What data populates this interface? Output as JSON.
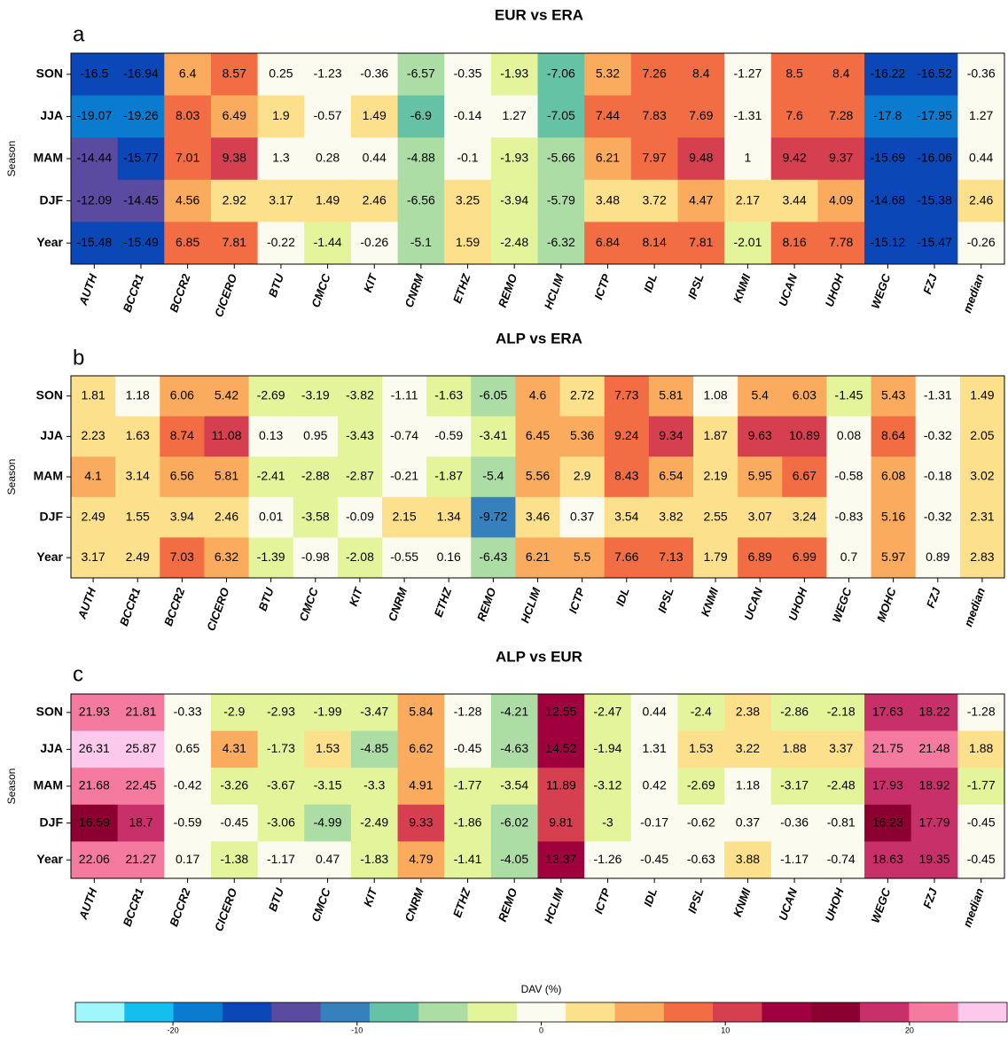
{
  "chart_data": [
    {
      "type": "heatmap",
      "title": "EUR vs ERA",
      "panel": "a",
      "ylabel": "Season",
      "rows": [
        "SON",
        "JJA",
        "MAM",
        "DJF",
        "Year"
      ],
      "columns": [
        "AUTH",
        "BCCR1",
        "BCCR2",
        "CICERO",
        "BTU",
        "CMCC",
        "KIT",
        "CNRM",
        "ETHZ",
        "REMO",
        "HCLIM",
        "ICTP",
        "IDL",
        "IPSL",
        "KNMI",
        "UCAN",
        "UHOH",
        "WEGC",
        "FZJ",
        "median"
      ],
      "values": [
        [
          -16.5,
          -16.94,
          6.4,
          8.57,
          0.25,
          -1.23,
          -0.36,
          -6.57,
          -0.35,
          -1.93,
          -7.06,
          5.32,
          7.26,
          8.4,
          -1.27,
          8.5,
          8.4,
          -16.22,
          -16.52,
          -0.36
        ],
        [
          -19.07,
          -19.26,
          8.03,
          6.49,
          1.9,
          -0.57,
          1.49,
          -6.9,
          -0.14,
          1.27,
          -7.05,
          7.44,
          7.83,
          7.69,
          -1.31,
          7.6,
          7.28,
          -17.8,
          -17.95,
          1.27
        ],
        [
          -14.44,
          -15.77,
          7.01,
          9.38,
          1.3,
          0.28,
          0.44,
          -4.88,
          -0.1,
          -1.93,
          -5.66,
          6.21,
          7.97,
          9.48,
          1,
          9.42,
          9.37,
          -15.69,
          -16.06,
          0.44
        ],
        [
          -12.09,
          -14.45,
          4.56,
          2.92,
          3.17,
          1.49,
          2.46,
          -6.56,
          3.25,
          -3.94,
          -5.79,
          3.48,
          3.72,
          4.47,
          2.17,
          3.44,
          4.09,
          -14.68,
          -15.38,
          2.46
        ],
        [
          -15.48,
          -15.49,
          6.85,
          7.81,
          -0.22,
          -1.44,
          -0.26,
          -5.1,
          1.59,
          -2.48,
          -6.32,
          6.84,
          8.14,
          7.81,
          -2.01,
          8.16,
          7.78,
          -15.12,
          -15.47,
          -0.26
        ]
      ]
    },
    {
      "type": "heatmap",
      "title": "ALP vs ERA",
      "panel": "b",
      "ylabel": "Season",
      "rows": [
        "SON",
        "JJA",
        "MAM",
        "DJF",
        "Year"
      ],
      "columns": [
        "AUTH",
        "BCCR1",
        "BCCR2",
        "CICERO",
        "BTU",
        "CMCC",
        "KIT",
        "CNRM",
        "ETHZ",
        "REMO",
        "HCLIM",
        "ICTP",
        "IDL",
        "IPSL",
        "KNMI",
        "UCAN",
        "UHOH",
        "WEGC",
        "MOHC",
        "FZJ",
        "median"
      ],
      "values": [
        [
          1.81,
          1.18,
          6.06,
          5.42,
          -2.69,
          -3.19,
          -3.82,
          -1.11,
          -1.63,
          -6.05,
          4.6,
          2.72,
          7.73,
          5.81,
          1.08,
          5.4,
          6.03,
          -1.45,
          5.43,
          -1.31,
          1.49
        ],
        [
          2.23,
          1.63,
          8.74,
          11.08,
          0.13,
          0.95,
          -3.43,
          -0.74,
          -0.59,
          -3.41,
          6.45,
          5.36,
          9.24,
          9.34,
          1.87,
          9.63,
          10.89,
          0.08,
          8.64,
          -0.32,
          2.05
        ],
        [
          4.1,
          3.14,
          6.56,
          5.81,
          -2.41,
          -2.88,
          -2.87,
          -0.21,
          -1.87,
          -5.4,
          5.56,
          2.9,
          8.43,
          6.54,
          2.19,
          5.95,
          6.67,
          -0.58,
          6.08,
          -0.18,
          3.02
        ],
        [
          2.49,
          1.55,
          3.94,
          2.46,
          0.01,
          -3.58,
          -0.09,
          2.15,
          1.34,
          -9.72,
          3.46,
          0.37,
          3.54,
          3.82,
          2.55,
          3.07,
          3.24,
          -0.83,
          5.16,
          -0.32,
          2.31
        ],
        [
          3.17,
          2.49,
          7.03,
          6.32,
          -1.39,
          -0.98,
          -2.08,
          -0.55,
          0.16,
          -6.43,
          6.21,
          5.5,
          7.66,
          7.13,
          1.79,
          6.89,
          6.99,
          0.7,
          5.97,
          0.89,
          2.83
        ]
      ]
    },
    {
      "type": "heatmap",
      "title": "ALP vs EUR",
      "panel": "c",
      "ylabel": "Season",
      "rows": [
        "SON",
        "JJA",
        "MAM",
        "DJF",
        "Year"
      ],
      "columns": [
        "AUTH",
        "BCCR1",
        "BCCR2",
        "CICERO",
        "BTU",
        "CMCC",
        "KIT",
        "CNRM",
        "ETHZ",
        "REMO",
        "HCLIM",
        "ICTP",
        "IDL",
        "IPSL",
        "KNMI",
        "UCAN",
        "UHOH",
        "WEGC",
        "FZJ",
        "median"
      ],
      "values": [
        [
          21.93,
          21.81,
          -0.33,
          -2.9,
          -2.93,
          -1.99,
          -3.47,
          5.84,
          -1.28,
          -4.21,
          12.55,
          -2.47,
          0.44,
          -2.4,
          2.38,
          -2.86,
          -2.18,
          17.63,
          18.22,
          -1.28
        ],
        [
          26.31,
          25.87,
          0.65,
          4.31,
          -1.73,
          1.53,
          -4.85,
          6.62,
          -0.45,
          -4.63,
          14.52,
          -1.94,
          1.31,
          1.53,
          3.22,
          1.88,
          3.37,
          21.75,
          21.48,
          1.88
        ],
        [
          21.68,
          22.45,
          -0.42,
          -3.26,
          -3.67,
          -3.15,
          -3.3,
          4.91,
          -1.77,
          -3.54,
          11.89,
          -3.12,
          0.42,
          -2.69,
          1.18,
          -3.17,
          -2.48,
          17.93,
          18.92,
          -1.77
        ],
        [
          16.59,
          18.7,
          -0.59,
          -0.45,
          -3.06,
          -4.99,
          -2.49,
          9.33,
          -1.86,
          -6.02,
          9.81,
          -3,
          -0.17,
          -0.62,
          0.37,
          -0.36,
          -0.81,
          16.23,
          17.79,
          -0.45
        ],
        [
          22.06,
          21.27,
          0.17,
          -1.38,
          -1.17,
          0.47,
          -1.83,
          4.79,
          -1.41,
          -4.05,
          13.37,
          -1.26,
          -0.45,
          -0.63,
          3.88,
          -1.17,
          -0.74,
          18.63,
          19.35,
          -0.45
        ]
      ]
    },
    {
      "type": "colorbar",
      "label": "DAV (%)",
      "xlim": [
        -25.3,
        25.3
      ],
      "xticks": [
        -20,
        -10,
        0,
        10,
        20
      ],
      "colors": [
        "#9ff7fb",
        "#14bff0",
        "#0b7bd0",
        "#0b47b6",
        "#5a4aa0",
        "#3680bd",
        "#66c2a5",
        "#abdda4",
        "#e3f49a",
        "#fbfbf0",
        "#fde08c",
        "#fbab5e",
        "#f26d44",
        "#d63f4f",
        "#a1003f",
        "#8b0030",
        "#c8306a",
        "#f47aa0",
        "#fcc8ec"
      ]
    }
  ]
}
